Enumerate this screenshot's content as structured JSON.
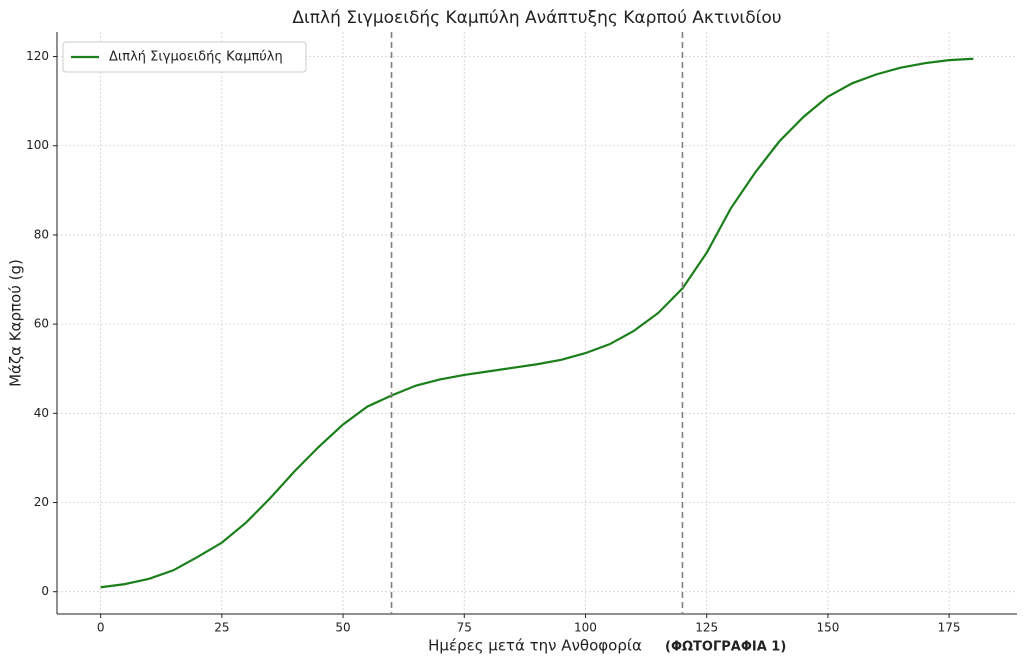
{
  "chart_data": {
    "type": "line",
    "title": "Διπλή Σιγμοειδής Καμπύλη Ανάπτυξης Καρπού Ακτινιδίου",
    "x_label": "Ημέρες μετά την Ανθοφορία",
    "annotation": "(ΦΩΤΟΓΡΑΦΙΑ 1)",
    "y_label": "Μάζα Καρπού (g)",
    "x": [
      0,
      5,
      10,
      15,
      20,
      25,
      30,
      35,
      40,
      45,
      50,
      55,
      60,
      65,
      70,
      75,
      80,
      85,
      90,
      95,
      100,
      105,
      110,
      115,
      120,
      125,
      130,
      135,
      140,
      145,
      150,
      155,
      160,
      165,
      170,
      175,
      180
    ],
    "series": [
      {
        "name": "Διπλή Σιγμοειδής Καμπύλη",
        "color": "#1a7f1a",
        "values": [
          1,
          1.7,
          2.9,
          4.8,
          7.8,
          11,
          15.5,
          21,
          27,
          32.5,
          37.5,
          41.5,
          44,
          46.2,
          47.6,
          48.6,
          49.4,
          50.2,
          51,
          52,
          53.5,
          55.5,
          58.5,
          62.5,
          68,
          76,
          86,
          94,
          101,
          106.5,
          111,
          114,
          116,
          117.5,
          118.5,
          119.2,
          119.5
        ]
      }
    ],
    "reference_lines": [
      {
        "x": 60,
        "color": "#808080"
      },
      {
        "x": 120,
        "color": "#808080"
      }
    ],
    "xlim": [
      -9,
      189
    ],
    "xticks": [
      0,
      25,
      50,
      75,
      100,
      125,
      150,
      175
    ],
    "ylim": [
      -5,
      125.5
    ],
    "yticks": [
      0,
      20,
      40,
      60,
      80,
      100,
      120
    ],
    "grid": true,
    "legend": "upper left"
  }
}
